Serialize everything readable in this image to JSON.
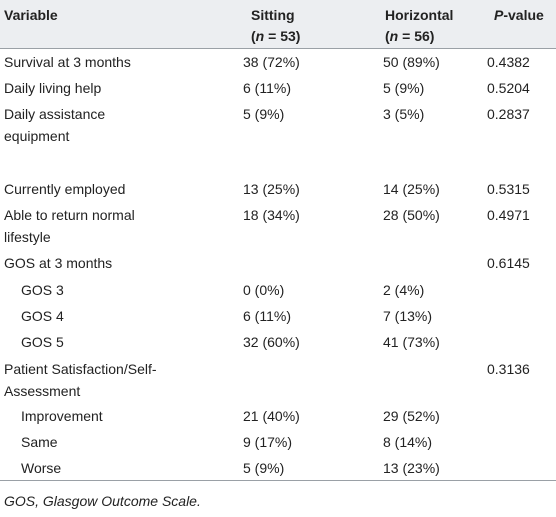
{
  "table": {
    "header": [
      {
        "label": "Variable"
      },
      {
        "label": "Sitting",
        "sub": [
          "(",
          "n",
          " = 53)"
        ]
      },
      {
        "label": "Horizontal",
        "sub": [
          "(",
          "n",
          " = 56)"
        ]
      },
      {
        "label_italic": "P",
        "label": "-value"
      }
    ],
    "rows": [
      {
        "variable": "Survival at 3 months",
        "sitting": "38 (72%)",
        "horizontal": "50 (89%)",
        "p_value": "0.4382"
      },
      {
        "variable": "Daily living help",
        "sitting": "6 (11%)",
        "horizontal": "5 (9%)",
        "p_value": "0.5204"
      },
      {
        "variable": "Daily assistance equipment",
        "sitting": "5 (9%)",
        "horizontal": "3 (5%)",
        "p_value": "0.2837"
      },
      {
        "variable": "Currently employed",
        "sitting": "13 (25%)",
        "horizontal": "14 (25%)",
        "p_value": "0.5315"
      },
      {
        "variable": "Able to return normal lifestyle",
        "sitting": "18 (34%)",
        "horizontal": "28 (50%)",
        "p_value": "0.4971"
      },
      {
        "variable": "GOS at 3 months",
        "p_value": "0.6145",
        "subrows": [
          {
            "variable": "GOS 3",
            "sitting": "0 (0%)",
            "horizontal": "2 (4%)"
          },
          {
            "variable": "GOS 4",
            "sitting": "6 (11%)",
            "horizontal": "7 (13%)"
          },
          {
            "variable": "GOS 5",
            "sitting": "32 (60%)",
            "horizontal": "41 (73%)"
          }
        ]
      },
      {
        "variable": "Patient Satisfaction/Self-Assessment",
        "p_value": "0.3136",
        "subrows": [
          {
            "variable": "Improvement",
            "sitting": "21 (40%)",
            "horizontal": "29 (52%)"
          },
          {
            "variable": "Same",
            "sitting": "9 (17%)",
            "horizontal": "8 (14%)"
          },
          {
            "variable": "Worse",
            "sitting": "5 (9%)",
            "horizontal": "13 (23%)"
          }
        ]
      }
    ],
    "footnote": "GOS, Glasgow Outcome Scale."
  }
}
